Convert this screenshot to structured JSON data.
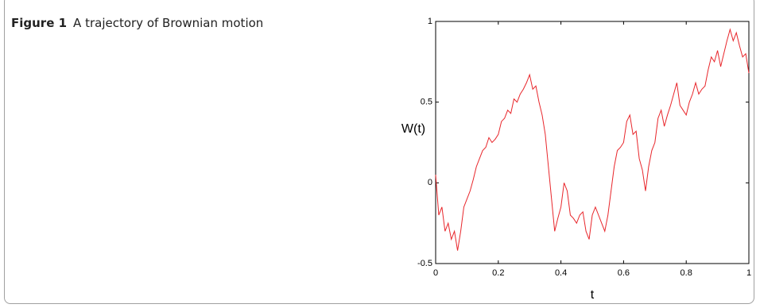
{
  "figure": {
    "label": "Figure 1",
    "caption": "A trajectory of Brownian motion"
  },
  "chart_data": {
    "type": "line",
    "xlabel": "t",
    "ylabel": "W(t)",
    "x": [
      0,
      0.01,
      0.02,
      0.03,
      0.04,
      0.05,
      0.06,
      0.07,
      0.08,
      0.09,
      0.1,
      0.11,
      0.12,
      0.13,
      0.14,
      0.15,
      0.16,
      0.17,
      0.18,
      0.19,
      0.2,
      0.21,
      0.22,
      0.23,
      0.24,
      0.25,
      0.26,
      0.27,
      0.28,
      0.29,
      0.3,
      0.31,
      0.32,
      0.33,
      0.34,
      0.35,
      0.36,
      0.37,
      0.38,
      0.39,
      0.4,
      0.41,
      0.42,
      0.43,
      0.44,
      0.45,
      0.46,
      0.47,
      0.48,
      0.49,
      0.5,
      0.51,
      0.52,
      0.53,
      0.54,
      0.55,
      0.56,
      0.57,
      0.58,
      0.59,
      0.6,
      0.61,
      0.62,
      0.63,
      0.64,
      0.65,
      0.66,
      0.67,
      0.68,
      0.69,
      0.7,
      0.71,
      0.72,
      0.73,
      0.74,
      0.75,
      0.76,
      0.77,
      0.78,
      0.79,
      0.8,
      0.81,
      0.82,
      0.83,
      0.84,
      0.85,
      0.86,
      0.87,
      0.88,
      0.89,
      0.9,
      0.91,
      0.92,
      0.93,
      0.94,
      0.95,
      0.96,
      0.97,
      0.98,
      0.99,
      1
    ],
    "values": [
      0.05,
      -0.2,
      -0.15,
      -0.3,
      -0.25,
      -0.35,
      -0.3,
      -0.42,
      -0.3,
      -0.15,
      -0.1,
      -0.05,
      0.02,
      0.1,
      0.15,
      0.2,
      0.22,
      0.28,
      0.25,
      0.27,
      0.3,
      0.38,
      0.4,
      0.45,
      0.43,
      0.52,
      0.5,
      0.55,
      0.58,
      0.62,
      0.67,
      0.58,
      0.6,
      0.5,
      0.42,
      0.3,
      0.1,
      -0.1,
      -0.3,
      -0.22,
      -0.15,
      0,
      -0.05,
      -0.2,
      -0.22,
      -0.25,
      -0.2,
      -0.18,
      -0.3,
      -0.35,
      -0.2,
      -0.15,
      -0.2,
      -0.25,
      -0.3,
      -0.2,
      -0.05,
      0.1,
      0.2,
      0.22,
      0.25,
      0.38,
      0.42,
      0.3,
      0.32,
      0.15,
      0.08,
      -0.05,
      0.1,
      0.2,
      0.25,
      0.4,
      0.45,
      0.35,
      0.42,
      0.48,
      0.55,
      0.62,
      0.48,
      0.45,
      0.42,
      0.5,
      0.55,
      0.62,
      0.55,
      0.58,
      0.6,
      0.7,
      0.78,
      0.75,
      0.82,
      0.72,
      0.8,
      0.88,
      0.95,
      0.88,
      0.93,
      0.85,
      0.78,
      0.8,
      0.68
    ],
    "color": "#e8262b",
    "xlim": [
      0,
      1
    ],
    "ylim": [
      -0.5,
      1
    ],
    "xticks": [
      0,
      0.2,
      0.4,
      0.6,
      0.8,
      1
    ],
    "yticks": [
      -0.5,
      0,
      0.5,
      1
    ],
    "grid": false
  }
}
